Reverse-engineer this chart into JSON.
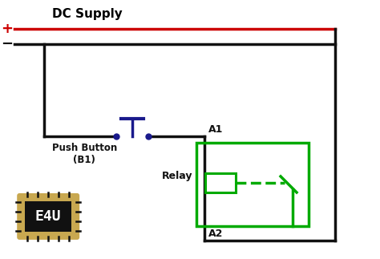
{
  "bg_color": "#ffffff",
  "dc_supply_text": "DC Supply",
  "plus_text": "+",
  "minus_text": "−",
  "push_button_text": "Push Button\n(B1)",
  "relay_text": "Relay",
  "a1_text": "A1",
  "a2_text": "A2",
  "e4u_text": "E4U",
  "red_line_color": "#cc0000",
  "black_wire_color": "#111111",
  "blue_button_color": "#1a1a8c",
  "green_relay_color": "#00aa00",
  "e4u_bg": "#111111",
  "e4u_border": "#c8a850",
  "lw": 2.5
}
